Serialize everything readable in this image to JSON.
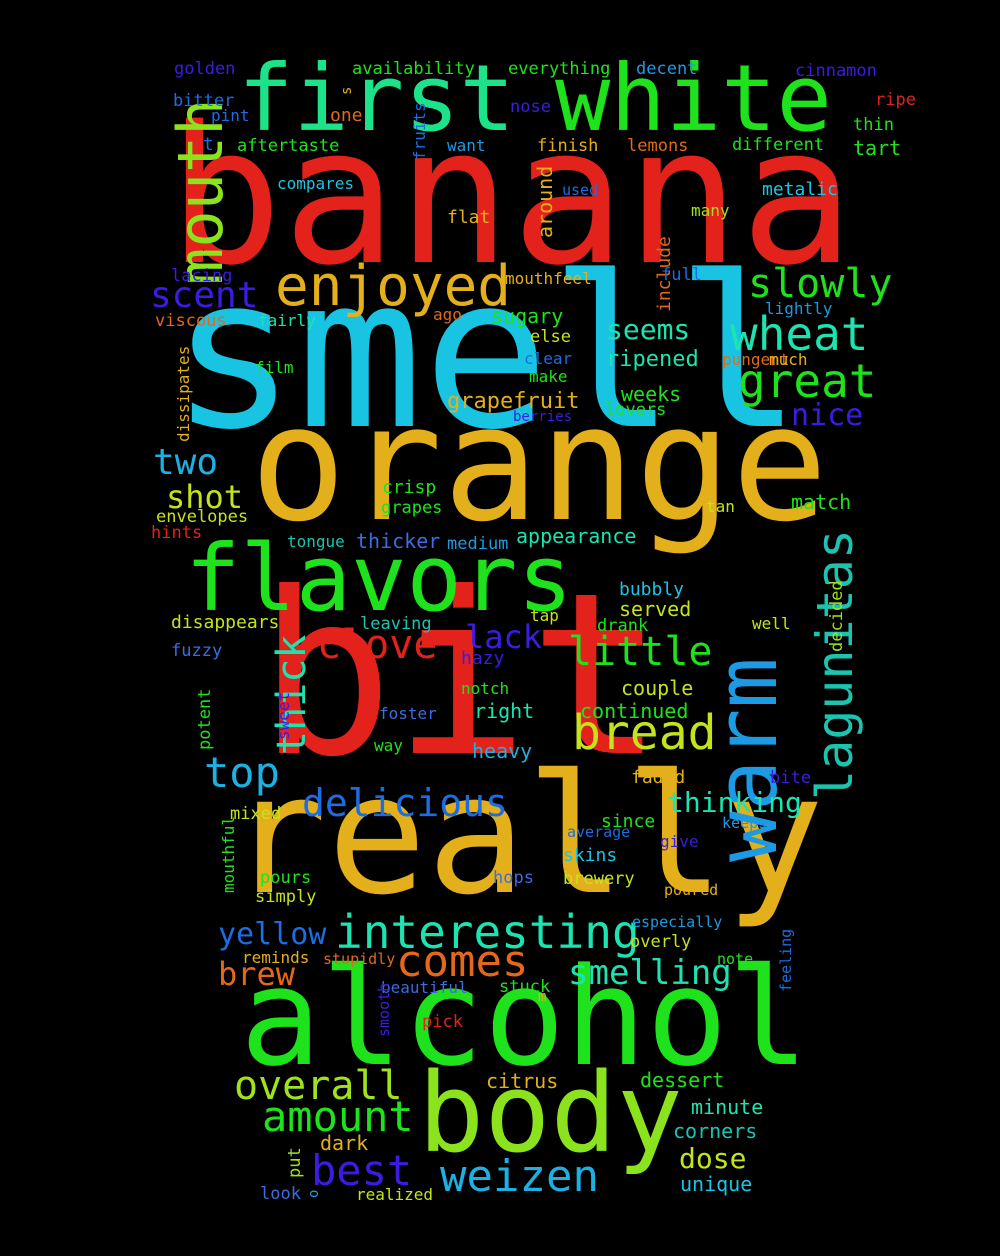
{
  "words": [
    {
      "text": "banana",
      "color": "#e3221c"
    },
    {
      "text": "smell",
      "color": "#19c4e3"
    },
    {
      "text": "orange",
      "color": "#e3b01c"
    },
    {
      "text": "bit",
      "color": "#e3221c"
    },
    {
      "text": "really",
      "color": "#e3b01c"
    },
    {
      "text": "alcohol",
      "color": "#1ee31c"
    },
    {
      "text": "flavors",
      "color": "#1ee31c"
    },
    {
      "text": "body",
      "color": "#8ae31c"
    },
    {
      "text": "first",
      "color": "#1ce38a"
    },
    {
      "text": "white",
      "color": "#1ee31c"
    },
    {
      "text": "warm",
      "color": "#1c9ae3"
    },
    {
      "text": "mouth",
      "color": "#8ae31c"
    },
    {
      "text": "enjoyed",
      "color": "#e3b01c"
    },
    {
      "text": "lagunitas",
      "color": "#1cc4b0"
    },
    {
      "text": "bread",
      "color": "#c4e31c"
    },
    {
      "text": "wheat",
      "color": "#1ce3b0"
    },
    {
      "text": "interesting",
      "color": "#1ce3b0"
    },
    {
      "text": "comes",
      "color": "#e3681c"
    },
    {
      "text": "great",
      "color": "#1ee31c"
    },
    {
      "text": "slowly",
      "color": "#1ee31c"
    },
    {
      "text": "delicious",
      "color": "#1c6ce3"
    },
    {
      "text": "little",
      "color": "#1ee31c"
    },
    {
      "text": "clove",
      "color": "#e3221c"
    },
    {
      "text": "amount",
      "color": "#1ee31c"
    },
    {
      "text": "overall",
      "color": "#a0e31c"
    },
    {
      "text": "weizen",
      "color": "#1cb0e3"
    },
    {
      "text": "best",
      "color": "#3b1ce3"
    },
    {
      "text": "top",
      "color": "#1cb0e3"
    },
    {
      "text": "thick",
      "color": "#1ce3b0"
    },
    {
      "text": "scent",
      "color": "#3b1ce3"
    },
    {
      "text": "two",
      "color": "#1cb0e3"
    },
    {
      "text": "smelling",
      "color": "#1ce3b0"
    },
    {
      "text": "yellow",
      "color": "#1c6ce3"
    },
    {
      "text": "brew",
      "color": "#e3681c"
    },
    {
      "text": "shot",
      "color": "#c4e31c"
    },
    {
      "text": "lack",
      "color": "#3b1ce3"
    },
    {
      "text": "nice",
      "color": "#3b1ce3"
    },
    {
      "text": "dose",
      "color": "#c4e31c"
    },
    {
      "text": "thinking",
      "color": "#1ce3b0"
    },
    {
      "text": "seems",
      "color": "#1ce3b0"
    },
    {
      "text": "ripened",
      "color": "#1ce3b0"
    },
    {
      "text": "grapefruit",
      "color": "#e3b01c"
    },
    {
      "text": "golden",
      "color": "#3b1ce3"
    },
    {
      "text": "availability",
      "color": "#1ee31c"
    },
    {
      "text": "everything",
      "color": "#1ee31c"
    },
    {
      "text": "decent",
      "color": "#1c9ae3"
    },
    {
      "text": "cinnamon",
      "color": "#3b1ce3"
    },
    {
      "text": "s",
      "color": "#e3b01c"
    },
    {
      "text": "bitter",
      "color": "#1c6ce3"
    },
    {
      "text": "ripe",
      "color": "#e3221c"
    },
    {
      "text": "pint",
      "color": "#1c6ce3"
    },
    {
      "text": "one",
      "color": "#e3681c"
    },
    {
      "text": "nose",
      "color": "#3b1ce3"
    },
    {
      "text": "thin",
      "color": "#1ee31c"
    },
    {
      "text": "fruits",
      "color": "#1c6ce3"
    },
    {
      "text": "t",
      "color": "#1c6ce3"
    },
    {
      "text": "aftertaste",
      "color": "#1ee31c"
    },
    {
      "text": "want",
      "color": "#1c9ae3"
    },
    {
      "text": "finish",
      "color": "#e3b01c"
    },
    {
      "text": "lemons",
      "color": "#e3681c"
    },
    {
      "text": "different",
      "color": "#1ee31c"
    },
    {
      "text": "tart",
      "color": "#1ee31c"
    },
    {
      "text": "compares",
      "color": "#1cc4e3"
    },
    {
      "text": "used",
      "color": "#1c6ce3"
    },
    {
      "text": "metalic",
      "color": "#1cc4e3"
    },
    {
      "text": "flat",
      "color": "#e3b01c"
    },
    {
      "text": "around",
      "color": "#e3b01c"
    },
    {
      "text": "many",
      "color": "#a0e31c"
    },
    {
      "text": "include",
      "color": "#e3681c"
    },
    {
      "text": "lacing",
      "color": "#3b1ce3"
    },
    {
      "text": "mouthfeel",
      "color": "#e3b01c"
    },
    {
      "text": "full",
      "color": "#1c6ce3"
    },
    {
      "text": "lightly",
      "color": "#1c9ae3"
    },
    {
      "text": "viscous",
      "color": "#e3681c"
    },
    {
      "text": "fairly",
      "color": "#1ce3b0"
    },
    {
      "text": "ago",
      "color": "#e3681c"
    },
    {
      "text": "sugary",
      "color": "#1ee31c"
    },
    {
      "text": "else",
      "color": "#c4e31c"
    },
    {
      "text": "dissipates",
      "color": "#e3b01c"
    },
    {
      "text": "film",
      "color": "#1ee31c"
    },
    {
      "text": "clear",
      "color": "#1c6ce3"
    },
    {
      "text": "make",
      "color": "#1ee31c"
    },
    {
      "text": "pungent",
      "color": "#e3681c"
    },
    {
      "text": "much",
      "color": "#e3b01c"
    },
    {
      "text": "berries",
      "color": "#3b1ce3"
    },
    {
      "text": "weeks",
      "color": "#1ee31c"
    },
    {
      "text": "lovers",
      "color": "#1ee31c"
    },
    {
      "text": "crisp",
      "color": "#1ee31c"
    },
    {
      "text": "grapes",
      "color": "#1ee31c"
    },
    {
      "text": "tan",
      "color": "#c4e31c"
    },
    {
      "text": "match",
      "color": "#1ee31c"
    },
    {
      "text": "envelopes",
      "color": "#c4e31c"
    },
    {
      "text": "hints",
      "color": "#e3221c"
    },
    {
      "text": "tongue",
      "color": "#1cc4b0"
    },
    {
      "text": "thicker",
      "color": "#3b6ce3"
    },
    {
      "text": "medium",
      "color": "#1c9ae3"
    },
    {
      "text": "appearance",
      "color": "#1ce3b0"
    },
    {
      "text": "bubbly",
      "color": "#1cc4e3"
    },
    {
      "text": "served",
      "color": "#c4e31c"
    },
    {
      "text": "decided",
      "color": "#a0e31c"
    },
    {
      "text": "disappears",
      "color": "#c4e31c"
    },
    {
      "text": "leaving",
      "color": "#1cc4b0"
    },
    {
      "text": "tap",
      "color": "#c4e31c"
    },
    {
      "text": "drank",
      "color": "#1ee31c"
    },
    {
      "text": "well",
      "color": "#c4e31c"
    },
    {
      "text": "fuzzy",
      "color": "#3b6ce3"
    },
    {
      "text": "hazy",
      "color": "#3b1ce3"
    },
    {
      "text": "potent",
      "color": "#1ee31c"
    },
    {
      "text": "sweet",
      "color": "#3b1ce3"
    },
    {
      "text": "notch",
      "color": "#1ee31c"
    },
    {
      "text": "couple",
      "color": "#c4e31c"
    },
    {
      "text": "foster",
      "color": "#3b6ce3"
    },
    {
      "text": "right",
      "color": "#1ce3b0"
    },
    {
      "text": "continued",
      "color": "#1ee31c"
    },
    {
      "text": "way",
      "color": "#1ee31c"
    },
    {
      "text": "heavy",
      "color": "#1cb0e3"
    },
    {
      "text": "faded",
      "color": "#e3b01c"
    },
    {
      "text": "bite",
      "color": "#3b1ce3"
    },
    {
      "text": "mouthful",
      "color": "#1ee31c"
    },
    {
      "text": "mixed",
      "color": "#c4e31c"
    },
    {
      "text": "since",
      "color": "#1ee31c"
    },
    {
      "text": "average",
      "color": "#1c6ce3"
    },
    {
      "text": "keeps",
      "color": "#1c9ae3"
    },
    {
      "text": "give",
      "color": "#3b1ce3"
    },
    {
      "text": "skins",
      "color": "#1cc4e3"
    },
    {
      "text": "pours",
      "color": "#1ee31c"
    },
    {
      "text": "hops",
      "color": "#3b6ce3"
    },
    {
      "text": "brewery",
      "color": "#c4e31c"
    },
    {
      "text": "poured",
      "color": "#e3b01c"
    },
    {
      "text": "simply",
      "color": "#c4e31c"
    },
    {
      "text": "especially",
      "color": "#1c9ae3"
    },
    {
      "text": "overly",
      "color": "#c4e31c"
    },
    {
      "text": "feeling",
      "color": "#1c6ce3"
    },
    {
      "text": "reminds",
      "color": "#e3b01c"
    },
    {
      "text": "stupidly",
      "color": "#e3681c"
    },
    {
      "text": "note",
      "color": "#1ee31c"
    },
    {
      "text": "beautiful",
      "color": "#3b6ce3"
    },
    {
      "text": "stuck",
      "color": "#1ee31c"
    },
    {
      "text": "m",
      "color": "#e3b01c"
    },
    {
      "text": "smooth",
      "color": "#3b1ce3"
    },
    {
      "text": "pick",
      "color": "#e3221c"
    },
    {
      "text": "citrus",
      "color": "#e3b01c"
    },
    {
      "text": "dessert",
      "color": "#1ee31c"
    },
    {
      "text": "minute",
      "color": "#1ce3b0"
    },
    {
      "text": "corners",
      "color": "#1cc4b0"
    },
    {
      "text": "dark",
      "color": "#e3b01c"
    },
    {
      "text": "put",
      "color": "#a0e31c"
    },
    {
      "text": "unique",
      "color": "#1cc4e3"
    },
    {
      "text": "look",
      "color": "#3b6ce3"
    },
    {
      "text": "o",
      "color": "#1c9ae3"
    },
    {
      "text": "realized",
      "color": "#c4e31c"
    }
  ]
}
